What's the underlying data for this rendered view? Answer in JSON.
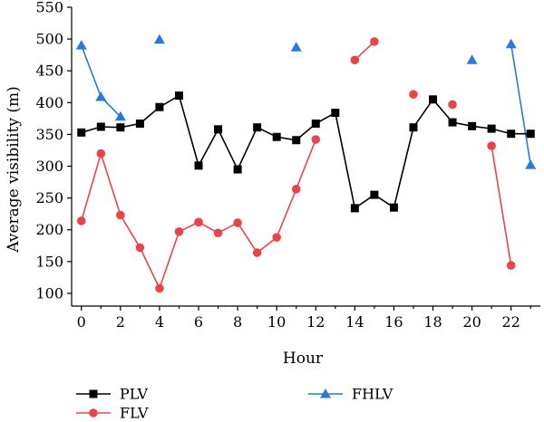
{
  "chart_data": {
    "type": "line",
    "xlabel": "Hour",
    "ylabel": "Average visibility (m)",
    "xlim": [
      -0.5,
      23.5
    ],
    "ylim": [
      80,
      550
    ],
    "x_ticks": [
      0,
      2,
      4,
      6,
      8,
      10,
      12,
      14,
      16,
      18,
      20,
      22
    ],
    "y_ticks": [
      100,
      150,
      200,
      250,
      300,
      350,
      400,
      450,
      500,
      550
    ],
    "grid": false,
    "legend_position": "bottom",
    "series": [
      {
        "name": "PLV",
        "color": "#000000",
        "marker": "square",
        "points": [
          [
            0,
            353
          ],
          [
            1,
            362
          ],
          [
            2,
            361
          ],
          [
            3,
            367
          ],
          [
            4,
            393
          ],
          [
            5,
            411
          ],
          [
            6,
            301
          ],
          [
            7,
            358
          ],
          [
            8,
            295
          ],
          [
            9,
            361
          ],
          [
            10,
            346
          ],
          [
            11,
            341
          ],
          [
            12,
            367
          ],
          [
            13,
            384
          ],
          [
            14,
            234
          ],
          [
            15,
            255
          ],
          [
            16,
            235
          ],
          [
            17,
            361
          ],
          [
            18,
            405
          ],
          [
            19,
            369
          ],
          [
            20,
            363
          ],
          [
            21,
            359
          ],
          [
            22,
            351
          ],
          [
            23,
            351
          ]
        ]
      },
      {
        "name": "FLV",
        "color": "#e8454a",
        "marker": "circle",
        "points": [
          [
            0,
            214
          ],
          [
            1,
            320
          ],
          [
            2,
            223
          ],
          [
            3,
            172
          ],
          [
            4,
            108
          ],
          [
            5,
            197
          ],
          [
            6,
            212
          ],
          [
            7,
            195
          ],
          [
            8,
            211
          ],
          [
            9,
            164
          ],
          [
            10,
            188
          ],
          [
            11,
            264
          ],
          [
            12,
            342
          ],
          [
            13,
            null
          ],
          [
            14,
            467
          ],
          [
            15,
            496
          ],
          [
            16,
            null
          ],
          [
            17,
            413
          ],
          [
            18,
            null
          ],
          [
            19,
            397
          ],
          [
            20,
            null
          ],
          [
            21,
            332
          ],
          [
            22,
            144
          ],
          [
            23,
            null
          ]
        ]
      },
      {
        "name": "FHLV",
        "color": "#2a7ad6",
        "marker": "triangle",
        "points": [
          [
            0,
            490
          ],
          [
            1,
            409
          ],
          [
            2,
            378
          ],
          [
            3,
            null
          ],
          [
            4,
            499
          ],
          [
            5,
            null
          ],
          [
            6,
            null
          ],
          [
            7,
            null
          ],
          [
            8,
            null
          ],
          [
            9,
            null
          ],
          [
            10,
            null
          ],
          [
            11,
            487
          ],
          [
            12,
            null
          ],
          [
            13,
            null
          ],
          [
            14,
            null
          ],
          [
            15,
            null
          ],
          [
            16,
            null
          ],
          [
            17,
            null
          ],
          [
            18,
            null
          ],
          [
            19,
            null
          ],
          [
            20,
            467
          ],
          [
            21,
            null
          ],
          [
            22,
            492
          ],
          [
            23,
            302
          ]
        ]
      }
    ]
  }
}
